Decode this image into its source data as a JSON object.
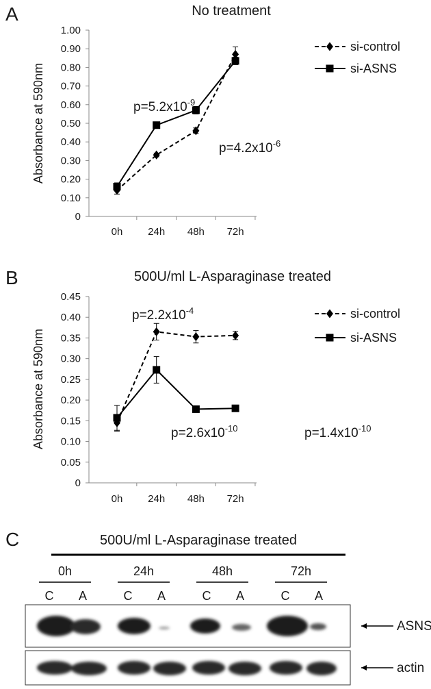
{
  "chart_data": [
    {
      "type": "line",
      "panel": "A",
      "title": "No treatment",
      "y_label": "Absorbance at 590nm",
      "categories": [
        "0h",
        "24h",
        "48h",
        "72h"
      ],
      "series": [
        {
          "name": "si-control",
          "color": "#000000",
          "line_style": "dashed",
          "marker": "diamond",
          "values": [
            0.14,
            0.33,
            0.46,
            0.87
          ],
          "errors": [
            0.02,
            0.01,
            0.015,
            0.04
          ]
        },
        {
          "name": "si-ASNS",
          "color": "#000000",
          "line_style": "solid",
          "marker": "square",
          "values": [
            0.16,
            0.49,
            0.57,
            0.835
          ],
          "errors": [
            0.02,
            0.01,
            0.02,
            0.02
          ]
        }
      ],
      "ylim": [
        0,
        1
      ],
      "yticks": [
        0,
        {
          "value": 0.1,
          "label": "0.10"
        },
        {
          "value": 0.2,
          "label": "0.20"
        },
        {
          "value": 0.3,
          "label": "0.30"
        },
        {
          "value": 0.4,
          "label": "0.40"
        },
        {
          "value": 0.5,
          "label": "0.50"
        },
        {
          "value": 0.6,
          "label": "0.60"
        },
        {
          "value": 0.7,
          "label": "0.70"
        },
        {
          "value": 0.8,
          "label": "0.80"
        },
        {
          "value": 0.9,
          "label": "0.90"
        },
        {
          "value": 1,
          "label": "1.00"
        }
      ],
      "grid": false,
      "legend": "upper right",
      "annotations": [
        {
          "text": "p=5.2x10",
          "sup": "-9"
        },
        {
          "text": "p=4.2x10",
          "sup": "-6"
        }
      ]
    },
    {
      "type": "line",
      "panel": "B",
      "title": "500U/ml L-Asparaginase treated",
      "y_label": "Absorbance at 590nm",
      "categories": [
        "0h",
        "24h",
        "48h",
        "72h"
      ],
      "series": [
        {
          "name": "si-control",
          "color": "#000000",
          "line_style": "dashed",
          "marker": "diamond",
          "values": [
            0.145,
            0.365,
            0.353,
            0.356
          ],
          "errors": [
            0.02,
            0.02,
            0.015,
            0.01
          ]
        },
        {
          "name": "si-ASNS",
          "color": "#000000",
          "line_style": "solid",
          "marker": "square",
          "values": [
            0.157,
            0.273,
            0.178,
            0.18
          ],
          "errors": [
            0.03,
            0.032,
            0.005,
            0.005
          ]
        }
      ],
      "ylim": [
        0,
        0.45
      ],
      "yticks": [
        0,
        {
          "value": 0.05,
          "label": "0.05"
        },
        {
          "value": 0.1,
          "label": "0.10"
        },
        {
          "value": 0.15,
          "label": "0.15"
        },
        {
          "value": 0.2,
          "label": "0.20"
        },
        {
          "value": 0.25,
          "label": "0.25"
        },
        {
          "value": 0.3,
          "label": "0.30"
        },
        {
          "value": 0.35,
          "label": "0.35"
        },
        {
          "value": 0.4,
          "label": "0.40"
        },
        {
          "value": 0.45,
          "label": "0.45"
        }
      ],
      "grid": false,
      "legend": "upper right",
      "annotations": [
        {
          "text": "p=2.2x10",
          "sup": "-4"
        },
        {
          "text": "p=2.6x10",
          "sup": "-10"
        },
        {
          "text": "p=1.4x10",
          "sup": "-10"
        }
      ]
    }
  ],
  "blot": {
    "panel": "C",
    "title": "500U/ml L-Asparaginase treated",
    "timepoints": [
      "0h",
      "24h",
      "48h",
      "72h"
    ],
    "lanes": [
      "C",
      "A",
      "C",
      "A",
      "C",
      "A",
      "C",
      "A"
    ],
    "bands": [
      "ASNS",
      "actin"
    ]
  }
}
